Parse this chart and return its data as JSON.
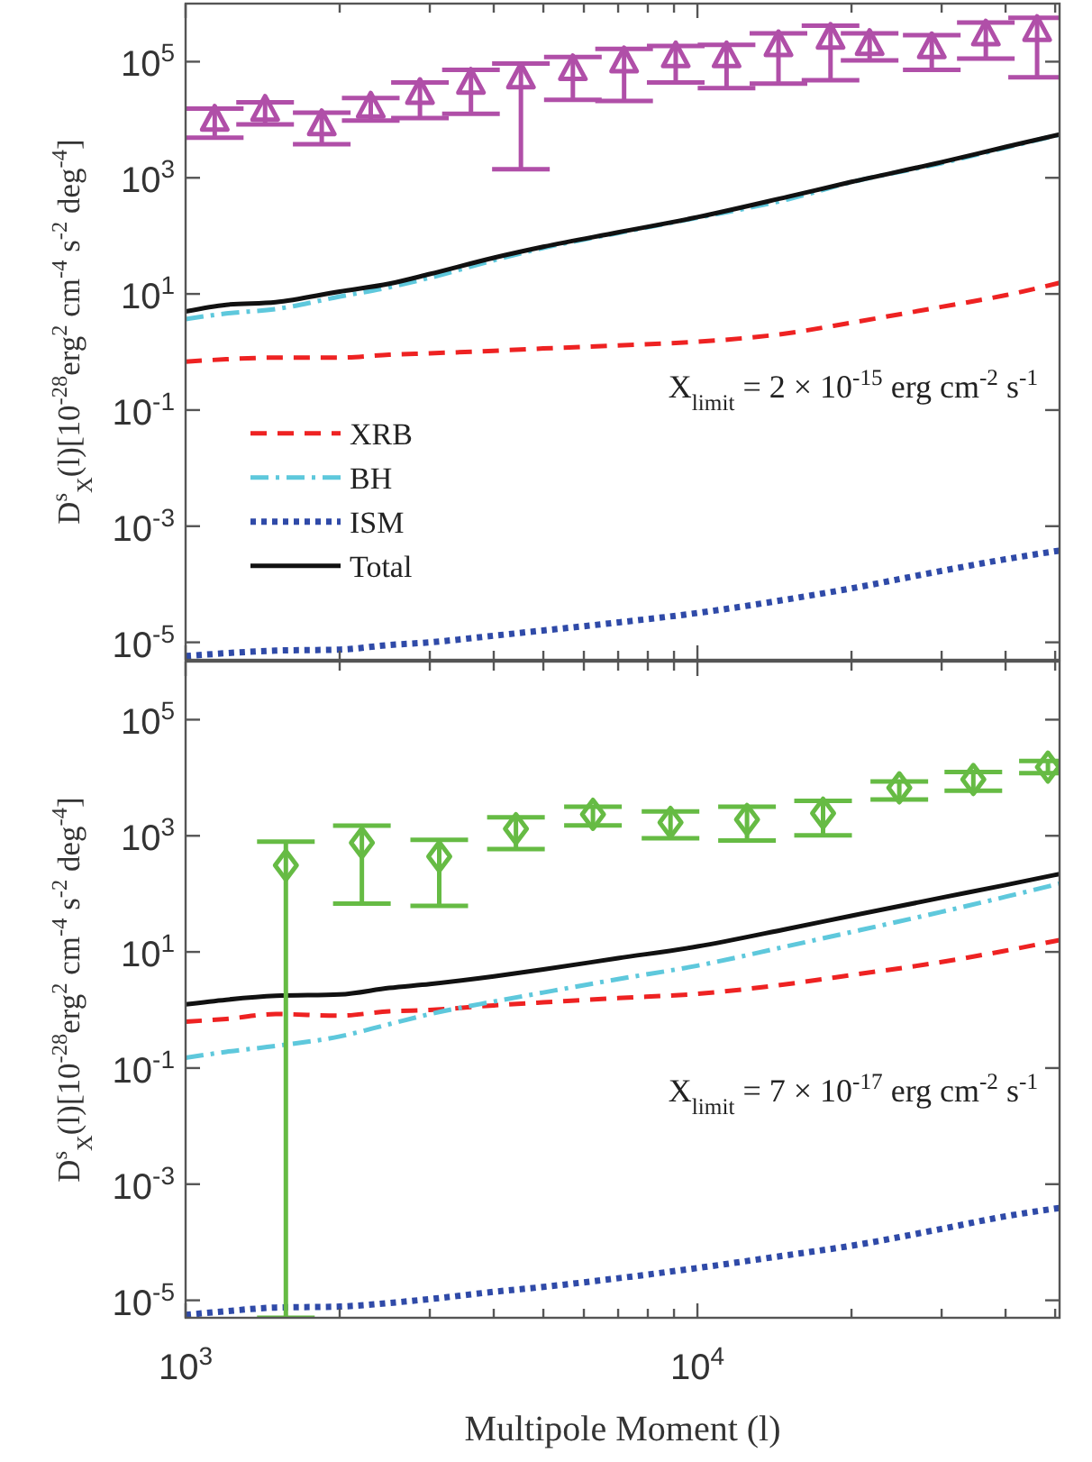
{
  "chart_data": [
    {
      "type": "line",
      "x": [
        1000,
        1200,
        1500,
        2000,
        2500,
        3000,
        4000,
        5000,
        7000,
        10000,
        15000,
        20000,
        30000,
        40000,
        51000
      ],
      "xlim": [
        1000,
        51000
      ],
      "ylim": [
        5e-06,
        1000000
      ],
      "log": "xy",
      "tick_labels": "y",
      "legend": "center left",
      "ylabel": "D$^{s}$$_{X}$(l)[10$^{-28}$erg$^{2}$ cm$^{-4}$ s$^{-2}$ deg$^{-4}$]",
      "annotations": [
        "X$_{limit}$ = 2 × 10$^{-15}$ erg cm$^{-2}$ s$^{-1}$"
      ],
      "xticks": [
        {
          "value": 1000,
          "label": null
        },
        {
          "value": 2000,
          "label": null
        },
        {
          "value": 3000,
          "label": null
        },
        {
          "value": 4000,
          "label": null
        },
        {
          "value": 5000,
          "label": null
        },
        {
          "value": 6000,
          "label": null
        },
        {
          "value": 7000,
          "label": null
        },
        {
          "value": 8000,
          "label": null
        },
        {
          "value": 9000,
          "label": null
        },
        {
          "value": 10000,
          "label": null
        },
        {
          "value": 20000,
          "label": null
        },
        {
          "value": 30000,
          "label": null
        },
        {
          "value": 40000,
          "label": null
        },
        {
          "value": 50000,
          "label": null
        }
      ],
      "yticks": [
        {
          "value": 1e-05,
          "label": "10$^{-5}$"
        },
        {
          "value": 0.001,
          "label": "10$^{-3}$"
        },
        {
          "value": 0.1,
          "label": "10$^{-1}$"
        },
        {
          "value": 10,
          "label": "10$^{1}$"
        },
        {
          "value": 1000,
          "label": "10$^{3}$"
        },
        {
          "value": 100000,
          "label": "10$^{5}$"
        }
      ],
      "series": [
        {
          "name": "XRB",
          "color": "#ee2222",
          "line_style": "dashed",
          "values": [
            0.68,
            0.75,
            0.8,
            0.8,
            0.9,
            0.95,
            1.05,
            1.15,
            1.3,
            1.5,
            2.1,
            3.2,
            6,
            9.5,
            15.5
          ]
        },
        {
          "name": "BH",
          "color": "#5ec8dc",
          "line_style": "dashdot",
          "values": [
            3.7,
            4.6,
            5.5,
            9,
            13,
            19,
            38,
            62,
            112,
            205,
            425,
            840,
            1790,
            3300,
            5550
          ]
        },
        {
          "name": "ISM",
          "color": "#2f4aa8",
          "line_style": "dotted",
          "values": [
            5.8e-06,
            6.5e-06,
            7.2e-06,
            7.5e-06,
            9e-06,
            1e-05,
            1.3e-05,
            1.6e-05,
            2.2e-05,
            3.2e-05,
            5.5e-05,
            8.5e-05,
            0.00017,
            0.00027,
            0.00038
          ]
        },
        {
          "name": "Total",
          "color": "#111111",
          "line_style": "solid",
          "values": [
            5.0,
            6.5,
            7.2,
            11,
            15,
            22,
            42,
            65,
            115,
            210,
            470,
            850,
            1860,
            3400,
            5600
          ]
        },
        {
          "type": "scatter",
          "marker": "triangle",
          "color": "#b04fa8",
          "x": [
            1140,
            1430,
            1845,
            2300,
            2870,
            3610,
            4520,
            5710,
            7190,
            9070,
            11400,
            14400,
            18200,
            21700,
            28700,
            36600,
            46100
          ],
          "values": [
            9700,
            14400,
            8100,
            16300,
            28000,
            42000,
            52000,
            72000,
            98000,
            120000,
            120000,
            186000,
            250000,
            195000,
            172000,
            285000,
            340000
          ],
          "errors": [
            [
              4900,
              15500
            ],
            [
              8300,
              20000
            ],
            [
              3800,
              13200
            ],
            [
              9700,
              23600
            ],
            [
              10700,
              44000
            ],
            [
              12600,
              72000
            ],
            [
              1400,
              93000
            ],
            [
              22000,
              120000
            ],
            [
              21000,
              166000
            ],
            [
              44000,
              186000
            ],
            [
              35000,
              195000
            ],
            [
              42000,
              308000
            ],
            [
              48000,
              415000
            ],
            [
              105000,
              308000
            ],
            [
              72000,
              285000
            ],
            [
              113000,
              470000
            ],
            [
              54000,
              570000
            ]
          ]
        }
      ]
    },
    {
      "type": "line",
      "x": [
        1000,
        1200,
        1500,
        2000,
        2500,
        3000,
        4000,
        5000,
        7000,
        10000,
        15000,
        20000,
        30000,
        40000,
        51000
      ],
      "xlim": [
        1000,
        51000
      ],
      "ylim": [
        5e-06,
        1000000
      ],
      "log": "xy",
      "xlabel": "Multipole Moment (l)",
      "ylabel": "D$^{s}$$_{X}$(l)[10$^{-28}$erg$^{2}$ cm$^{-4}$ s$^{-2}$ deg$^{-4}$]",
      "annotations": [
        "X$_{limit}$ = 7 × 10$^{-17}$ erg cm$^{-2}$ s$^{-1}$"
      ],
      "xticks": [
        {
          "value": 1000,
          "label": "10$^{3}$"
        },
        {
          "value": 2000,
          "label": null
        },
        {
          "value": 3000,
          "label": null
        },
        {
          "value": 4000,
          "label": null
        },
        {
          "value": 5000,
          "label": null
        },
        {
          "value": 6000,
          "label": null
        },
        {
          "value": 7000,
          "label": null
        },
        {
          "value": 8000,
          "label": null
        },
        {
          "value": 9000,
          "label": null
        },
        {
          "value": 10000,
          "label": "10$^{4}$"
        },
        {
          "value": 20000,
          "label": null
        },
        {
          "value": 30000,
          "label": null
        },
        {
          "value": 40000,
          "label": null
        },
        {
          "value": 50000,
          "label": null
        }
      ],
      "yticks": [
        {
          "value": 1e-05,
          "label": "10$^{-5}$"
        },
        {
          "value": 0.001,
          "label": "10$^{-3}$"
        },
        {
          "value": 0.1,
          "label": "10$^{-1}$"
        },
        {
          "value": 10,
          "label": "10$^{1}$"
        },
        {
          "value": 1000,
          "label": "10$^{3}$"
        },
        {
          "value": 100000,
          "label": "10$^{5}$"
        }
      ],
      "series": [
        {
          "color": "#ee2222",
          "line_style": "dashed",
          "values": [
            0.63,
            0.7,
            0.85,
            0.8,
            0.95,
            1.0,
            1.2,
            1.35,
            1.6,
            1.9,
            2.8,
            4.0,
            6.7,
            10.5,
            16
          ]
        },
        {
          "color": "#5ec8dc",
          "line_style": "dashdot",
          "values": [
            0.15,
            0.19,
            0.24,
            0.35,
            0.57,
            0.85,
            1.4,
            2.0,
            3.4,
            5.8,
            12.6,
            22,
            49,
            89,
            150
          ]
        },
        {
          "color": "#2f4aa8",
          "line_style": "dotted",
          "values": [
            5.6e-06,
            6.5e-06,
            7.5e-06,
            7.8e-06,
            9e-06,
            1.05e-05,
            1.4e-05,
            1.7e-05,
            2.4e-05,
            3.6e-05,
            6e-05,
            8.7e-05,
            0.00017,
            0.00028,
            0.00039
          ]
        },
        {
          "color": "#111111",
          "line_style": "solid",
          "values": [
            1.25,
            1.5,
            1.75,
            1.85,
            2.4,
            2.8,
            3.8,
            5,
            7.8,
            12.4,
            25,
            42,
            86,
            142,
            220
          ]
        },
        {
          "type": "scatter",
          "marker": "diamond",
          "color": "#66bb44",
          "x": [
            1570,
            2210,
            3130,
            4420,
            6250,
            8860,
            12500,
            17600,
            24800,
            34600,
            48400
          ],
          "values": [
            310,
            760,
            440,
            1320,
            2340,
            1700,
            1910,
            2450,
            6700,
            9300,
            15200
          ],
          "errors": [
            [
              5e-06,
              790
            ],
            [
              68,
              1500
            ],
            [
              62,
              850
            ],
            [
              590,
              2090
            ],
            [
              1510,
              3160
            ],
            [
              910,
              2630
            ],
            [
              830,
              3160
            ],
            [
              1020,
              4000
            ],
            [
              4200,
              8600
            ],
            [
              6000,
              12500
            ],
            [
              12000,
              19500
            ]
          ]
        }
      ]
    }
  ]
}
